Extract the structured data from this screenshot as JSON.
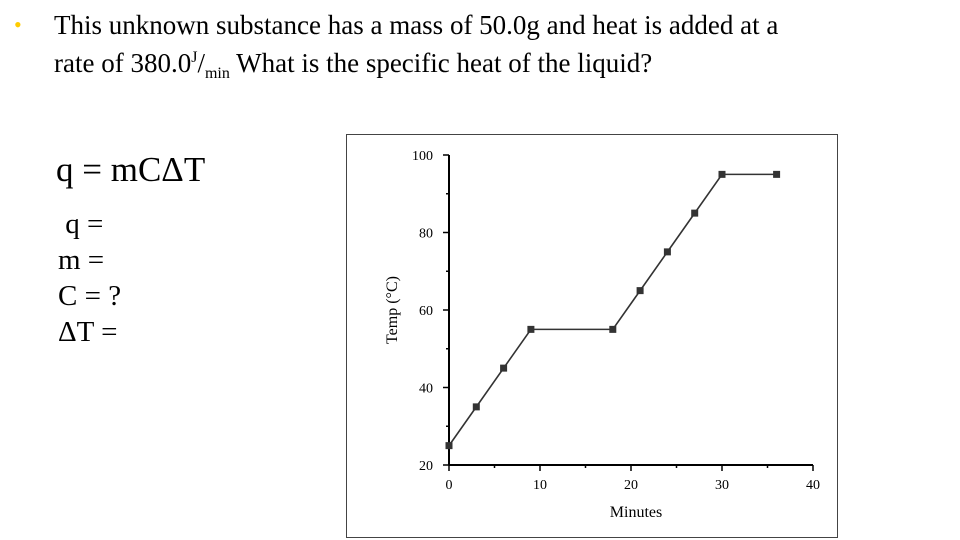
{
  "question": {
    "bullet": "•",
    "line1": "This unknown substance has a mass of 50.0g and heat is added at a",
    "line2_prefix": "rate of 380.0",
    "unit_num": "J",
    "unit_slash": "/",
    "unit_den": "min",
    "line2_suffix": " What is the specific heat of the liquid?"
  },
  "equation": "q = mCΔT",
  "variables": [
    {
      "label": " q ="
    },
    {
      "label": "m ="
    },
    {
      "label": "C = ?"
    },
    {
      "label": "ΔT ="
    }
  ],
  "chart_data": {
    "type": "line",
    "xlabel": "Minutes",
    "ylabel": "Temp (°C)",
    "xlim": [
      0,
      40
    ],
    "ylim": [
      20,
      100
    ],
    "xticks": [
      0,
      10,
      20,
      30,
      40
    ],
    "yticks": [
      20,
      40,
      60,
      80,
      100
    ],
    "x": [
      0,
      3,
      6,
      9,
      18,
      21,
      24,
      27,
      30,
      36
    ],
    "y": [
      25,
      35,
      45,
      55,
      55,
      65,
      75,
      85,
      95,
      95
    ],
    "line_color": "#333333",
    "marker_color": "#333333"
  }
}
